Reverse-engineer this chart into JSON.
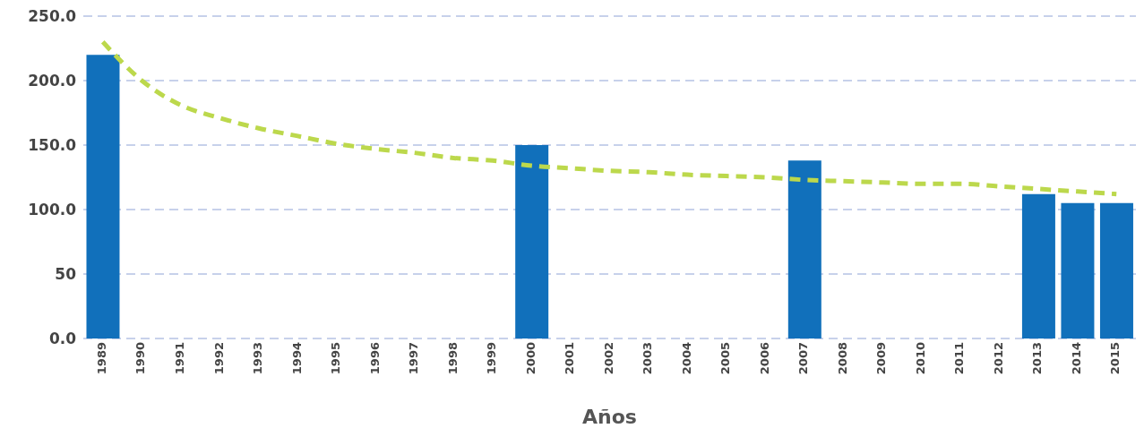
{
  "chart_data": {
    "type": "bar",
    "xlabel": "Años",
    "categories": [
      "1989",
      "1990",
      "1991",
      "1992",
      "1993",
      "1994",
      "1995",
      "1996",
      "1997",
      "1998",
      "1999",
      "2000",
      "2001",
      "2002",
      "2003",
      "2004",
      "2005",
      "2006",
      "2007",
      "2008",
      "2009",
      "2010",
      "2011",
      "2012",
      "2013",
      "2014",
      "2015"
    ],
    "series": [
      {
        "color": "#1170bb",
        "values": [
          220,
          null,
          null,
          null,
          null,
          null,
          null,
          null,
          null,
          null,
          null,
          150,
          null,
          null,
          null,
          null,
          null,
          null,
          138,
          null,
          null,
          null,
          null,
          null,
          112,
          105,
          105
        ]
      },
      {
        "type": "line",
        "color": "#bcd84c",
        "line_style": "dashed",
        "marker": "none",
        "values": [
          230,
          200,
          181,
          171,
          163,
          157,
          151,
          147,
          144,
          140,
          138,
          134,
          132,
          130,
          129,
          127,
          126,
          125,
          123,
          122,
          121,
          120,
          120,
          118,
          116,
          114,
          112
        ]
      }
    ],
    "ylim": [
      0,
      250
    ],
    "yticks": [
      {
        "value": 0,
        "label": "0.0"
      },
      {
        "value": 50,
        "label": "50"
      },
      {
        "value": 100,
        "label": "100.0"
      },
      {
        "value": 150,
        "label": "150.0"
      },
      {
        "value": 200,
        "label": "200.0"
      },
      {
        "value": 250,
        "label": "250.0"
      }
    ],
    "grid": "y",
    "legend": false
  }
}
